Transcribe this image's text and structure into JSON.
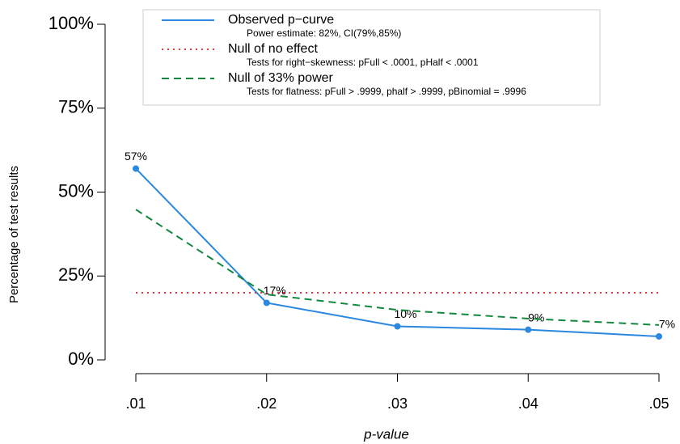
{
  "chart_data": {
    "type": "line",
    "x_label": "p-value",
    "y_label": "Percentage of test results",
    "categories": [
      ".01",
      ".02",
      ".03",
      ".04",
      ".05"
    ],
    "series": [
      {
        "name": "Observed p−curve",
        "note": "Power estimate: 82%, CI(79%,85%)",
        "color": "#2a88e0",
        "style": "solid",
        "markers": true,
        "values": [
          57,
          17,
          10,
          9,
          7
        ],
        "value_labels": [
          "57%",
          "17%",
          "10%",
          "9%",
          "7%"
        ]
      },
      {
        "name": "Null of no effect",
        "note": "Tests for right−skewness: pFull < .0001, pHalf < .0001",
        "color": "#e8393b",
        "style": "dotted",
        "markers": false,
        "values": [
          20,
          20,
          20,
          20,
          20
        ]
      },
      {
        "name": "Null of 33% power",
        "note": "Tests for flatness: pFull > .9999, phalf > .9999, pBinomial = .9996",
        "color": "#12873e",
        "style": "dashed",
        "markers": false,
        "values": [
          44.8,
          19.5,
          14.9,
          12.3,
          10.4
        ]
      }
    ],
    "ylim": [
      0,
      100
    ],
    "yticks": [
      {
        "value": 0,
        "label": "0%"
      },
      {
        "value": 25,
        "label": "25%"
      },
      {
        "value": 50,
        "label": "50%"
      },
      {
        "value": 75,
        "label": "75%"
      },
      {
        "value": 100,
        "label": "100%"
      }
    ],
    "legend": "top"
  }
}
